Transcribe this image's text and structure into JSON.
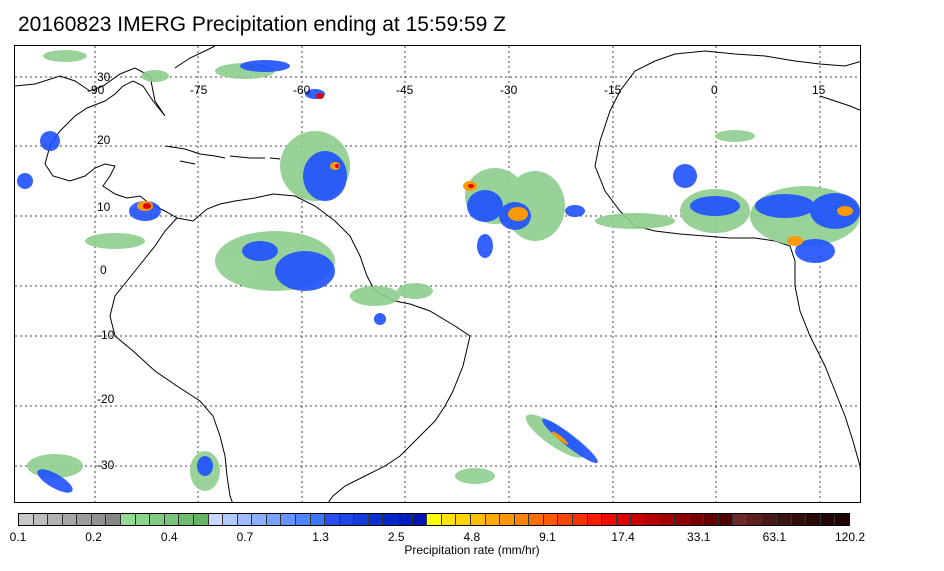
{
  "title": "20160823 IMERG Precipitation ending at 15:59:59 Z",
  "map": {
    "lon_labels": [
      "-90",
      "-75",
      "-60",
      "-45",
      "-30",
      "-15",
      "0",
      "15"
    ],
    "lat_labels": [
      "30",
      "20",
      "10",
      "0",
      "-10",
      "-20",
      "-30"
    ],
    "colors": {
      "land_outline": "#000000",
      "grid": "#444444",
      "light_green": "#8fce8f",
      "blue": "#1e50ff",
      "dark_blue": "#1010c8",
      "yellow": "#ffff00",
      "orange": "#ff9900",
      "red": "#e00000",
      "dark_red": "#8b0000"
    }
  },
  "colorbar": {
    "label": "Precipitation rate (mm/hr)",
    "tick_labels": [
      "0.1",
      "0.2",
      "0.4",
      "0.7",
      "1.3",
      "2.5",
      "4.8",
      "9.1",
      "17.4",
      "33.1",
      "63.1",
      "120.2"
    ],
    "colors": [
      "#c8c8c8",
      "#bdbdbd",
      "#b2b2b2",
      "#a7a7a7",
      "#9c9c9c",
      "#919191",
      "#868686",
      "#96dc96",
      "#8cd48c",
      "#82cc82",
      "#78c478",
      "#6ebc6e",
      "#64b464",
      "#c8d8ff",
      "#b4caff",
      "#a0bcff",
      "#8cb0ff",
      "#78a2ff",
      "#6494ff",
      "#5086ff",
      "#3c78ff",
      "#2850f0",
      "#1e46e6",
      "#143cdc",
      "#0a32d2",
      "#0028c8",
      "#001ebe",
      "#0014b4",
      "#ffff00",
      "#ffe600",
      "#ffd200",
      "#ffbe00",
      "#ffaa00",
      "#ff9600",
      "#ff8200",
      "#ff6e00",
      "#ff5a00",
      "#ff4600",
      "#ff3200",
      "#ff1e00",
      "#f00a00",
      "#dc0000",
      "#c80000",
      "#b40000",
      "#a00000",
      "#8c0000",
      "#780000",
      "#640000",
      "#500000",
      "#6e2a2a",
      "#5c2020",
      "#4a1818",
      "#3c1212",
      "#300c0c",
      "#2a0808",
      "#240606",
      "#200404"
    ]
  }
}
